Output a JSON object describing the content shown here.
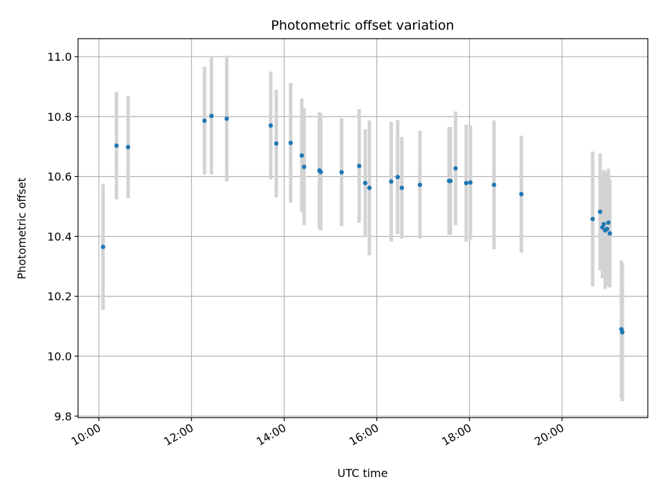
{
  "chart_data": {
    "type": "scatter",
    "title": "Photometric offset variation",
    "xlabel": "UTC time",
    "ylabel": "Photometric offset",
    "x_unit": "hours UTC",
    "xlim": [
      9.55,
      21.85
    ],
    "ylim": [
      9.795,
      11.06
    ],
    "x_ticks": [
      {
        "value": 10,
        "label": "10:00"
      },
      {
        "value": 12,
        "label": "12:00"
      },
      {
        "value": 14,
        "label": "14:00"
      },
      {
        "value": 16,
        "label": "16:00"
      },
      {
        "value": 18,
        "label": "18:00"
      },
      {
        "value": 20,
        "label": "20:00"
      }
    ],
    "y_ticks": [
      {
        "value": 9.8,
        "label": "9.8"
      },
      {
        "value": 10.0,
        "label": "10.0"
      },
      {
        "value": 10.2,
        "label": "10.2"
      },
      {
        "value": 10.4,
        "label": "10.4"
      },
      {
        "value": 10.6,
        "label": "10.6"
      },
      {
        "value": 10.8,
        "label": "10.8"
      },
      {
        "value": 11.0,
        "label": "11.0"
      }
    ],
    "grid": true,
    "point_color": "#1f77b4",
    "errorbar_color": "#d3d3d3",
    "points": [
      {
        "x": 10.09,
        "y": 10.365,
        "err": 0.21
      },
      {
        "x": 10.38,
        "y": 10.703,
        "err": 0.18
      },
      {
        "x": 10.63,
        "y": 10.698,
        "err": 0.17
      },
      {
        "x": 12.28,
        "y": 10.786,
        "err": 0.18
      },
      {
        "x": 12.43,
        "y": 10.802,
        "err": 0.195
      },
      {
        "x": 12.76,
        "y": 10.793,
        "err": 0.21
      },
      {
        "x": 13.71,
        "y": 10.77,
        "err": 0.18
      },
      {
        "x": 13.83,
        "y": 10.71,
        "err": 0.18
      },
      {
        "x": 14.14,
        "y": 10.712,
        "err": 0.2
      },
      {
        "x": 14.38,
        "y": 10.67,
        "err": 0.19
      },
      {
        "x": 14.43,
        "y": 10.632,
        "err": 0.195
      },
      {
        "x": 14.76,
        "y": 10.62,
        "err": 0.195
      },
      {
        "x": 14.79,
        "y": 10.615,
        "err": 0.195
      },
      {
        "x": 15.24,
        "y": 10.614,
        "err": 0.18
      },
      {
        "x": 15.62,
        "y": 10.635,
        "err": 0.19
      },
      {
        "x": 15.75,
        "y": 10.578,
        "err": 0.18
      },
      {
        "x": 15.84,
        "y": 10.562,
        "err": 0.225
      },
      {
        "x": 16.31,
        "y": 10.583,
        "err": 0.2
      },
      {
        "x": 16.45,
        "y": 10.598,
        "err": 0.19
      },
      {
        "x": 16.54,
        "y": 10.562,
        "err": 0.17
      },
      {
        "x": 16.93,
        "y": 10.572,
        "err": 0.18
      },
      {
        "x": 17.56,
        "y": 10.585,
        "err": 0.18
      },
      {
        "x": 17.59,
        "y": 10.585,
        "err": 0.18
      },
      {
        "x": 17.7,
        "y": 10.627,
        "err": 0.19
      },
      {
        "x": 17.93,
        "y": 10.578,
        "err": 0.195
      },
      {
        "x": 18.02,
        "y": 10.58,
        "err": 0.19
      },
      {
        "x": 18.53,
        "y": 10.572,
        "err": 0.215
      },
      {
        "x": 19.12,
        "y": 10.541,
        "err": 0.195
      },
      {
        "x": 20.66,
        "y": 10.458,
        "err": 0.225
      },
      {
        "x": 20.82,
        "y": 10.482,
        "err": 0.195
      },
      {
        "x": 20.87,
        "y": 10.43,
        "err": 0.17
      },
      {
        "x": 20.9,
        "y": 10.441,
        "err": 0.18
      },
      {
        "x": 20.93,
        "y": 10.42,
        "err": 0.195
      },
      {
        "x": 20.97,
        "y": 10.425,
        "err": 0.19
      },
      {
        "x": 21.0,
        "y": 10.446,
        "err": 0.18
      },
      {
        "x": 21.03,
        "y": 10.41,
        "err": 0.18
      },
      {
        "x": 21.28,
        "y": 10.09,
        "err": 0.23
      },
      {
        "x": 21.3,
        "y": 10.08,
        "err": 0.23
      }
    ]
  }
}
